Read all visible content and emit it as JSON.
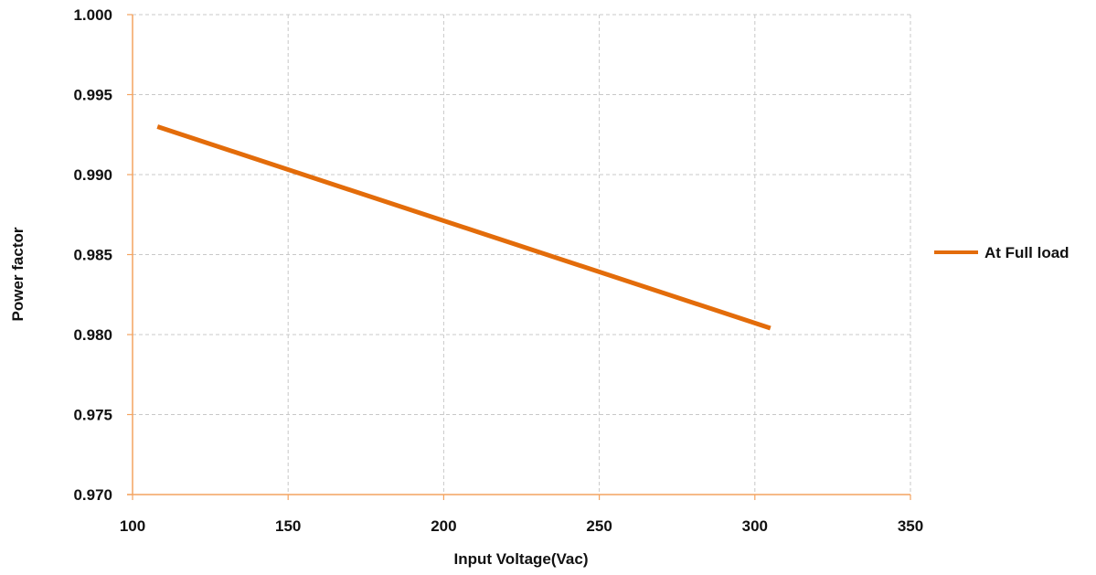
{
  "chart_data": {
    "type": "line",
    "title": "",
    "xlabel": "Input Voltage(Vac)",
    "ylabel": "Power factor",
    "xlim": [
      100,
      350
    ],
    "ylim": [
      0.97,
      1.0
    ],
    "x_ticks": [
      100,
      150,
      200,
      250,
      300,
      350
    ],
    "x_tick_labels": [
      "100",
      "150",
      "200",
      "250",
      "300",
      "350"
    ],
    "y_ticks": [
      0.97,
      0.975,
      0.98,
      0.985,
      0.99,
      0.995,
      1.0
    ],
    "y_tick_labels": [
      "0.970",
      "0.975",
      "0.980",
      "0.985",
      "0.990",
      "0.995",
      "1.000"
    ],
    "grid": true,
    "legend_position": "right",
    "series": [
      {
        "name": "At Full load",
        "color": "#E36C0A",
        "x": [
          108,
          305
        ],
        "values": [
          0.993,
          0.9804
        ]
      }
    ]
  },
  "colors": {
    "axis": "#F4A460",
    "grid": "#C8C8C8",
    "series": "#E36C0A"
  }
}
